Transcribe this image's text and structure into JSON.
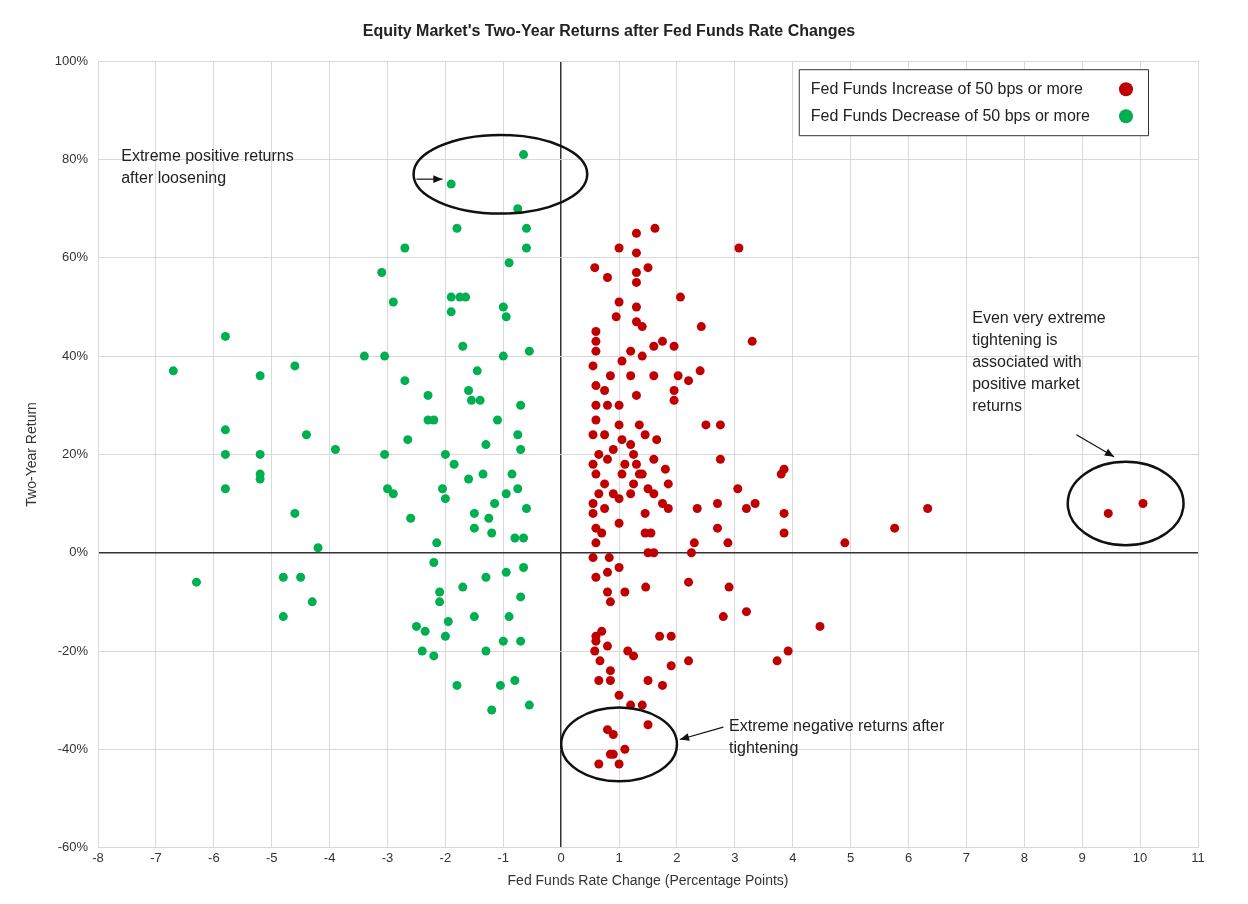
{
  "chart_data": {
    "type": "scatter",
    "title": "Equity Market's Two-Year Returns after Fed Funds Rate Changes",
    "xlabel": "Fed Funds Rate Change (Percentage Points)",
    "ylabel": "Two-Year Return",
    "xlim": [
      -8,
      11
    ],
    "xticks": [
      -8,
      -7,
      -6,
      -5,
      -4,
      -3,
      -2,
      -1,
      0,
      1,
      2,
      3,
      4,
      5,
      6,
      7,
      8,
      9,
      10,
      11
    ],
    "ylim": [
      -60,
      100
    ],
    "yticks": [
      {
        "value": -60,
        "label": "-60%"
      },
      {
        "value": -40,
        "label": "-40%"
      },
      {
        "value": -20,
        "label": "-20%"
      },
      {
        "value": 0,
        "label": "0%"
      },
      {
        "value": 20,
        "label": "20%"
      },
      {
        "value": 40,
        "label": "40%"
      },
      {
        "value": 60,
        "label": "60%"
      },
      {
        "value": 80,
        "label": "80%"
      },
      {
        "value": 100,
        "label": "100%"
      }
    ],
    "grid": true,
    "legend": "top right",
    "marker": "circle",
    "annotations": [
      "Extreme positive returns after loosening",
      "Even very extreme tightening is associated with positive market returns",
      "Extreme negative returns  after tightening"
    ],
    "series": [
      {
        "name": "Fed Funds Increase of 50 bps or more",
        "color": "#c00000",
        "x": [
          1.62,
          1.3,
          1.0,
          1.3,
          3.07,
          0.58,
          0.8,
          1.3,
          1.5,
          1.3,
          2.06,
          1.0,
          1.3,
          0.95,
          1.3,
          1.4,
          2.42,
          3.3,
          0.6,
          0.6,
          0.6,
          0.55,
          1.2,
          1.6,
          1.75,
          1.95,
          1.4,
          1.05,
          0.85,
          1.2,
          1.6,
          2.02,
          2.2,
          2.4,
          0.6,
          0.75,
          1.3,
          1.95,
          1.95,
          0.6,
          0.8,
          1.0,
          0.6,
          1.0,
          1.35,
          2.5,
          2.75,
          0.55,
          0.75,
          1.45,
          1.65,
          1.05,
          1.2,
          2.75,
          0.55,
          0.8,
          1.3,
          1.6,
          1.8,
          3.8,
          3.85,
          0.6,
          1.05,
          1.35,
          0.75,
          1.25,
          1.5,
          1.85,
          3.05,
          0.65,
          1.0,
          1.2,
          1.6,
          6.33,
          0.55,
          0.75,
          1.75,
          1.85,
          2.35,
          2.7,
          3.2,
          3.35,
          1.45,
          3.85,
          5.76,
          0.55,
          0.6,
          1.0,
          2.7,
          4.9,
          1.45,
          1.55,
          2.25,
          2.3,
          2.88,
          3.85,
          1.5,
          1.6,
          0.55,
          0.83,
          1.0,
          0.6,
          0.8,
          1.46,
          2.2,
          2.9,
          0.8,
          1.1,
          0.85,
          2.8,
          3.2,
          4.47,
          0.6,
          0.7,
          0.6,
          0.8,
          1.7,
          1.9,
          3.92,
          3.73,
          1.15,
          1.25,
          0.58,
          0.67,
          1.9,
          2.2,
          0.85,
          0.65,
          0.85,
          1.5,
          1.75,
          1.0,
          1.2,
          1.4,
          1.5,
          0.8,
          0.9,
          0.85,
          0.9,
          1.1,
          0.65,
          1.0,
          9.45,
          10.05,
          0.6,
          0.7,
          0.9,
          1.1,
          1.25,
          0.9,
          1.4,
          0.65
        ],
        "values": [
          66,
          65,
          62,
          61,
          62,
          58,
          56,
          57,
          58,
          55,
          52,
          51,
          50,
          48,
          47,
          46,
          46,
          43,
          45,
          43,
          41,
          38,
          41,
          42,
          43,
          42,
          40,
          39,
          36,
          36,
          36,
          36,
          35,
          37,
          34,
          33,
          32,
          33,
          31,
          30,
          30,
          30,
          27,
          26,
          26,
          26,
          26,
          24,
          24,
          24,
          23,
          23,
          22,
          19,
          18,
          19,
          18,
          19,
          17,
          16,
          17,
          16,
          16,
          16,
          14,
          14,
          13,
          14,
          13,
          12,
          11,
          12,
          12,
          9,
          10,
          9,
          10,
          9,
          9,
          10,
          9,
          10,
          8,
          8,
          5,
          8,
          5,
          6,
          5,
          2,
          4,
          4,
          0,
          2,
          2,
          4,
          0,
          0,
          -1,
          -1,
          -3,
          -5,
          -4,
          -7,
          -6,
          -7,
          -8,
          -8,
          -10,
          -13,
          -12,
          -15,
          -17,
          -16,
          -18,
          -19,
          -17,
          -17,
          -20,
          -22,
          -20,
          -21,
          -20,
          -22,
          -23,
          -22,
          -24,
          -26,
          -26,
          -26,
          -27,
          -29,
          -31,
          -31,
          -35,
          -36,
          -37,
          -41,
          -41,
          -40,
          -43,
          -43,
          8,
          10,
          2,
          4,
          12,
          18,
          20,
          21,
          16,
          20
        ]
      },
      {
        "name": "Fed Funds Decrease of 50 bps or more",
        "color": "#00b050",
        "x": [
          -6.7,
          -6.3,
          -5.8,
          -5.8,
          -5.8,
          -5.8,
          -5.2,
          -5.2,
          -5.2,
          -5.2,
          -4.8,
          -4.8,
          -4.6,
          -4.6,
          -4.5,
          -4.4,
          -4.3,
          -4.2,
          -3.9,
          -3.4,
          -3.1,
          -3.05,
          -3.05,
          -3.0,
          -2.9,
          -2.9,
          -2.7,
          -2.7,
          -2.65,
          -2.6,
          -2.5,
          -2.4,
          -2.35,
          -2.3,
          -2.3,
          -2.2,
          -2.2,
          -2.2,
          -2.1,
          -2.1,
          -2.05,
          -2.0,
          -2.0,
          -1.95,
          -1.9,
          -1.9,
          -1.9,
          -1.85,
          -1.8,
          -1.8,
          -1.75,
          -1.7,
          -1.7,
          -1.65,
          -1.6,
          -1.6,
          -1.55,
          -1.5,
          -1.5,
          -1.45,
          -1.4,
          -1.35,
          -1.3,
          -1.3,
          -1.25,
          -1.2,
          -1.1,
          -1.05,
          -1.0,
          -1.0,
          -1.0,
          -0.95,
          -0.95,
          -0.9,
          -0.9,
          -0.8,
          -0.8,
          -0.75,
          -0.7,
          -0.7,
          -0.7,
          -0.65,
          -0.6,
          -0.6,
          -0.55,
          -0.55,
          -0.6,
          -0.75,
          -1.15,
          -1.5,
          -0.95,
          -0.65,
          -0.85,
          -1.2,
          -2.15,
          -0.7,
          -1.3,
          -2.0,
          -0.65,
          -0.75
        ],
        "values": [
          37,
          -6,
          44,
          25,
          20,
          13,
          36,
          20,
          16,
          15,
          -5,
          -13,
          38,
          8,
          -5,
          24,
          -10,
          1,
          21,
          40,
          57,
          40,
          20,
          13,
          51,
          12,
          62,
          35,
          23,
          7,
          -15,
          -20,
          -16,
          32,
          27,
          27,
          -21,
          -2,
          -8,
          -10,
          13,
          20,
          -17,
          -14,
          52,
          49,
          75,
          18,
          66,
          -27,
          52,
          42,
          -7,
          52,
          33,
          15,
          31,
          -13,
          5,
          37,
          31,
          16,
          -20,
          -5,
          7,
          -32,
          27,
          -27,
          50,
          40,
          -18,
          48,
          12,
          59,
          -13,
          -26,
          3,
          70,
          30,
          -18,
          21,
          81,
          66,
          62,
          41,
          -31,
          9,
          13,
          10,
          8,
          -4,
          3,
          16,
          4,
          2,
          -9,
          22,
          11,
          -3,
          24
        ]
      }
    ]
  }
}
